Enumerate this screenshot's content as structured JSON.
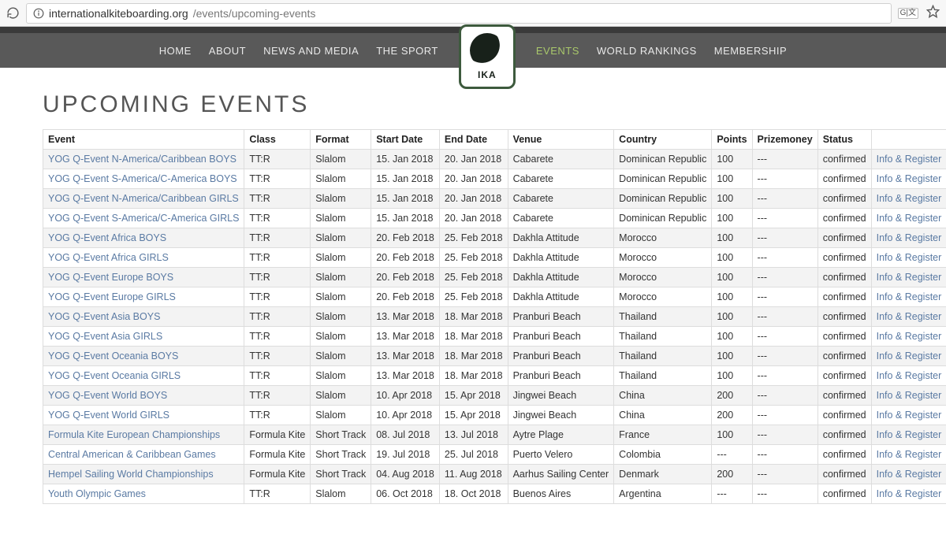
{
  "browser": {
    "url_host": "internationalkiteboarding.org",
    "url_path": "/events/upcoming-events",
    "translate_label": "G|文"
  },
  "nav": {
    "left": [
      "HOME",
      "ABOUT",
      "NEWS AND MEDIA",
      "THE SPORT"
    ],
    "right": [
      "EVENTS",
      "WORLD RANKINGS",
      "MEMBERSHIP"
    ],
    "active": "EVENTS",
    "logo_text": "IKA"
  },
  "page": {
    "title": "UPCOMING EVENTS"
  },
  "table": {
    "columns": [
      "Event",
      "Class",
      "Format",
      "Start Date",
      "End Date",
      "Venue",
      "Country",
      "Points",
      "Prizemoney",
      "Status",
      ""
    ],
    "info_label": "Info & Register",
    "rows": [
      {
        "event": "YOG Q-Event N-America/Caribbean BOYS",
        "class": "TT:R",
        "format": "Slalom",
        "start": "15. Jan 2018",
        "end": "20. Jan 2018",
        "venue": "Cabarete",
        "country": "Dominican Republic",
        "points": "100",
        "prize": "---",
        "status": "confirmed"
      },
      {
        "event": "YOG Q-Event S-America/C-America BOYS",
        "class": "TT:R",
        "format": "Slalom",
        "start": "15. Jan 2018",
        "end": "20. Jan 2018",
        "venue": "Cabarete",
        "country": "Dominican Republic",
        "points": "100",
        "prize": "---",
        "status": "confirmed"
      },
      {
        "event": "YOG Q-Event N-America/Caribbean GIRLS",
        "class": "TT:R",
        "format": "Slalom",
        "start": "15. Jan 2018",
        "end": "20. Jan 2018",
        "venue": "Cabarete",
        "country": "Dominican Republic",
        "points": "100",
        "prize": "---",
        "status": "confirmed"
      },
      {
        "event": "YOG Q-Event S-America/C-America GIRLS",
        "class": "TT:R",
        "format": "Slalom",
        "start": "15. Jan 2018",
        "end": "20. Jan 2018",
        "venue": "Cabarete",
        "country": "Dominican Republic",
        "points": "100",
        "prize": "---",
        "status": "confirmed"
      },
      {
        "event": "YOG Q-Event Africa BOYS",
        "class": "TT:R",
        "format": "Slalom",
        "start": "20. Feb 2018",
        "end": "25. Feb 2018",
        "venue": "Dakhla Attitude",
        "country": "Morocco",
        "points": "100",
        "prize": "---",
        "status": "confirmed"
      },
      {
        "event": "YOG Q-Event Africa GIRLS",
        "class": "TT:R",
        "format": "Slalom",
        "start": "20. Feb 2018",
        "end": "25. Feb 2018",
        "venue": "Dakhla Attitude",
        "country": "Morocco",
        "points": "100",
        "prize": "---",
        "status": "confirmed"
      },
      {
        "event": "YOG Q-Event Europe BOYS",
        "class": "TT:R",
        "format": "Slalom",
        "start": "20. Feb 2018",
        "end": "25. Feb 2018",
        "venue": "Dakhla Attitude",
        "country": "Morocco",
        "points": "100",
        "prize": "---",
        "status": "confirmed"
      },
      {
        "event": "YOG Q-Event Europe GIRLS",
        "class": "TT:R",
        "format": "Slalom",
        "start": "20. Feb 2018",
        "end": "25. Feb 2018",
        "venue": "Dakhla Attitude",
        "country": "Morocco",
        "points": "100",
        "prize": "---",
        "status": "confirmed"
      },
      {
        "event": "YOG Q-Event Asia BOYS",
        "class": "TT:R",
        "format": "Slalom",
        "start": "13. Mar 2018",
        "end": "18. Mar 2018",
        "venue": "Pranburi Beach",
        "country": "Thailand",
        "points": "100",
        "prize": "---",
        "status": "confirmed"
      },
      {
        "event": "YOG Q-Event Asia GIRLS",
        "class": "TT:R",
        "format": "Slalom",
        "start": "13. Mar 2018",
        "end": "18. Mar 2018",
        "venue": "Pranburi Beach",
        "country": "Thailand",
        "points": "100",
        "prize": "---",
        "status": "confirmed"
      },
      {
        "event": "YOG Q-Event Oceania BOYS",
        "class": "TT:R",
        "format": "Slalom",
        "start": "13. Mar 2018",
        "end": "18. Mar 2018",
        "venue": "Pranburi Beach",
        "country": "Thailand",
        "points": "100",
        "prize": "---",
        "status": "confirmed"
      },
      {
        "event": "YOG Q-Event Oceania GIRLS",
        "class": "TT:R",
        "format": "Slalom",
        "start": "13. Mar 2018",
        "end": "18. Mar 2018",
        "venue": "Pranburi Beach",
        "country": "Thailand",
        "points": "100",
        "prize": "---",
        "status": "confirmed"
      },
      {
        "event": "YOG Q-Event World BOYS",
        "class": "TT:R",
        "format": "Slalom",
        "start": "10. Apr 2018",
        "end": "15. Apr 2018",
        "venue": "Jingwei Beach",
        "country": "China",
        "points": "200",
        "prize": "---",
        "status": "confirmed"
      },
      {
        "event": "YOG Q-Event World GIRLS",
        "class": "TT:R",
        "format": "Slalom",
        "start": "10. Apr 2018",
        "end": "15. Apr 2018",
        "venue": "Jingwei Beach",
        "country": "China",
        "points": "200",
        "prize": "---",
        "status": "confirmed"
      },
      {
        "event": "Formula Kite European Championships",
        "class": "Formula Kite",
        "format": "Short Track",
        "start": "08. Jul 2018",
        "end": "13. Jul 2018",
        "venue": "Aytre Plage",
        "country": "France",
        "points": "100",
        "prize": "---",
        "status": "confirmed"
      },
      {
        "event": "Central American & Caribbean Games",
        "class": "Formula Kite",
        "format": "Short Track",
        "start": "19. Jul 2018",
        "end": "25. Jul 2018",
        "venue": "Puerto Velero",
        "country": "Colombia",
        "points": "---",
        "prize": "---",
        "status": "confirmed"
      },
      {
        "event": "Hempel Sailing World Championships",
        "class": "Formula Kite",
        "format": "Short Track",
        "start": "04. Aug 2018",
        "end": "11. Aug 2018",
        "venue": "Aarhus Sailing Center",
        "country": "Denmark",
        "points": "200",
        "prize": "---",
        "status": "confirmed"
      },
      {
        "event": "Youth Olympic Games",
        "class": "TT:R",
        "format": "Slalom",
        "start": "06. Oct 2018",
        "end": "18. Oct 2018",
        "venue": "Buenos Aires",
        "country": "Argentina",
        "points": "---",
        "prize": "---",
        "status": "confirmed"
      }
    ]
  }
}
